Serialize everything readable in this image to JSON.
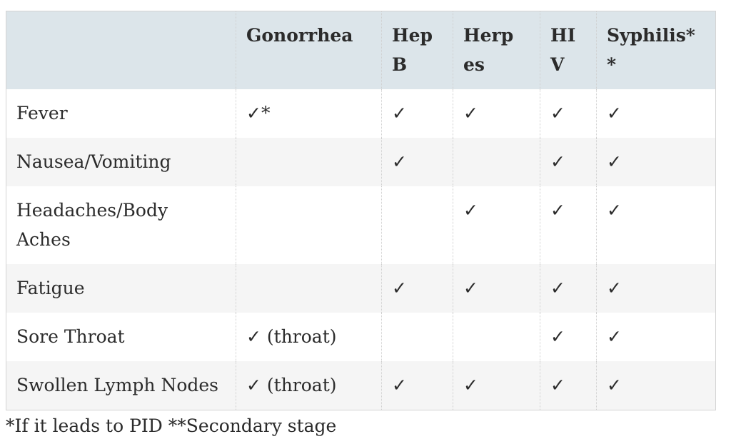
{
  "table": {
    "header": [
      null,
      "Gonorrhea",
      "HepB",
      "Herpes",
      "HIV",
      "Syphilis**"
    ],
    "rows": [
      [
        "Fever",
        "✓*",
        "✓",
        "✓",
        "✓",
        "✓"
      ],
      [
        "Nausea/Vomiting",
        null,
        "✓",
        null,
        "✓",
        "✓"
      ],
      [
        "Headaches/Body Aches",
        null,
        null,
        "✓",
        "✓",
        "✓"
      ],
      [
        "Fatigue",
        null,
        "✓",
        "✓",
        "✓",
        "✓"
      ],
      [
        "Sore Throat",
        "✓ (throat)",
        null,
        null,
        "✓",
        "✓"
      ],
      [
        "Swollen Lymph Nodes",
        "✓ (throat)",
        "✓",
        "✓",
        "✓",
        "✓"
      ]
    ]
  },
  "footnote": "*If it leads to PID **Secondary stage"
}
